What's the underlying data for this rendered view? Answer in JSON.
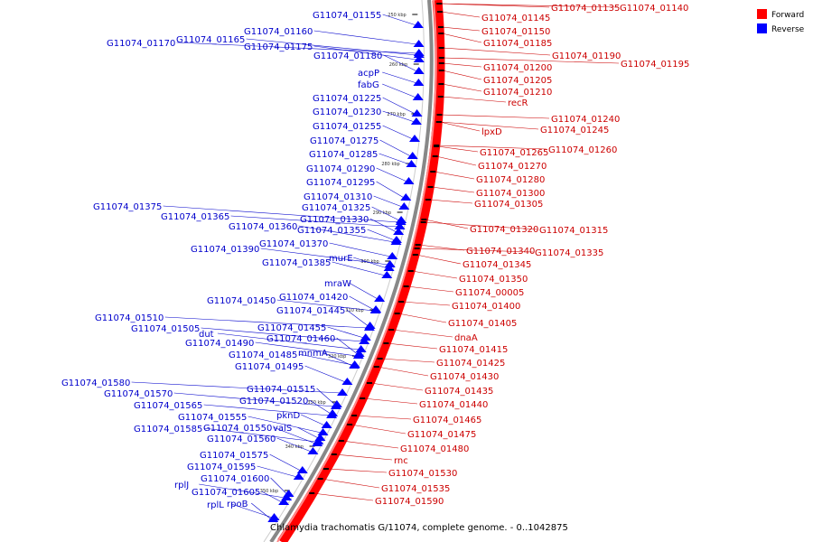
{
  "caption": "Chlamydia trachomatis G/11074, complete genome. - 0..1042875",
  "legend": [
    {
      "label": "Forward",
      "color": "#ff0000"
    },
    {
      "label": "Reverse",
      "color": "#0000ff"
    }
  ],
  "colors": {
    "forward": "#ff0000",
    "reverse": "#0000ff",
    "forward_line": "#cc0000",
    "reverse_line": "#0000cc",
    "backbone": "#888888"
  },
  "kbp_ticks": [
    "250 kbp",
    "260 kbp",
    "270 kbp",
    "280 kbp",
    "290 kbp",
    "300 kbp",
    "310 kbp",
    "320 kbp",
    "330 kbp",
    "340 kbp",
    "350 kbp"
  ],
  "forward_genes": [
    "G11074_01135",
    "G11074_01140",
    "G11074_01145",
    "G11074_01150",
    "G11074_01185",
    "G11074_01190",
    "G11074_01195",
    "G11074_01200",
    "G11074_01205",
    "G11074_01210",
    "recR",
    "G11074_01240",
    "lpxD",
    "G11074_01245",
    "G11074_01265",
    "G11074_01260",
    "G11074_01270",
    "G11074_01280",
    "G11074_01300",
    "G11074_01305",
    "G11074_01320",
    "G11074_01315",
    "G11074_01340",
    "G11074_01335",
    "G11074_01345",
    "G11074_01350",
    "G11074_00005",
    "G11074_01400",
    "G11074_01405",
    "dnaA",
    "G11074_01415",
    "G11074_01425",
    "G11074_01430",
    "G11074_01435",
    "G11074_01440",
    "G11074_01465",
    "G11074_01475",
    "G11074_01480",
    "rnc",
    "G11074_01530",
    "G11074_01535",
    "G11074_01590"
  ],
  "reverse_genes": [
    "G11074_01155",
    "G11074_01160",
    "G11074_01165",
    "G11074_01170",
    "G11074_01175",
    "G11074_01180",
    "acpP",
    "fabG",
    "G11074_01225",
    "G11074_01230",
    "G11074_01255",
    "G11074_01275",
    "G11074_01285",
    "G11074_01290",
    "G11074_01295",
    "G11074_01310",
    "G11074_01325",
    "G11074_01375",
    "G11074_01365",
    "G11074_01330",
    "G11074_01360",
    "G11074_01355",
    "G11074_01370",
    "G11074_01390",
    "murE",
    "G11074_01385",
    "mraW",
    "G11074_01450",
    "G11074_01420",
    "G11074_01445",
    "G11074_01510",
    "G11074_01505",
    "dut",
    "G11074_01455",
    "G11074_01490",
    "G11074_01460",
    "G11074_01485",
    "mnmA",
    "G11074_01495",
    "G11074_01580",
    "G11074_01570",
    "G11074_01515",
    "G11074_01565",
    "G11074_01520",
    "G11074_01555",
    "pknD",
    "G11074_01585",
    "G11074_01550",
    "valS",
    "G11074_01560",
    "G11074_01575",
    "G11074_01595",
    "rplJ",
    "G11074_01600",
    "G11074_01605",
    "rplL",
    "rpoB"
  ]
}
